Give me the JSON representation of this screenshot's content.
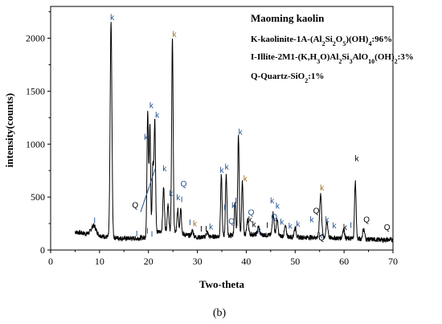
{
  "figure": {
    "panel_label": "(b)"
  },
  "legend": {
    "title": "Maoming kaolin",
    "lines": [
      [
        "K-kaolinite-1A-(Al",
        {
          "sub": "2"
        },
        "Si",
        {
          "sub": "2"
        },
        "O",
        {
          "sub": "5"
        },
        ")(OH)",
        {
          "sub": "4"
        },
        ":96%"
      ],
      [
        "I-Illite-2M1-(K,H",
        {
          "sub": "3"
        },
        "O)Al",
        {
          "sub": "2"
        },
        "Si",
        {
          "sub": "3"
        },
        "AlO",
        {
          "sub": "10"
        },
        "(OH)",
        {
          "sub": "2"
        },
        ":3%"
      ],
      [
        "Q-Quartz-SiO",
        {
          "sub": "2"
        },
        ":1%"
      ]
    ]
  },
  "chart_data": {
    "type": "line",
    "title": "",
    "xlabel": "Two-theta",
    "ylabel": "intensity(counts)",
    "xlim": [
      0,
      70
    ],
    "ylim": [
      0,
      2300
    ],
    "xticks": [
      0,
      10,
      20,
      30,
      40,
      50,
      60,
      70
    ],
    "yticks": [
      0,
      500,
      1000,
      1500,
      2000
    ],
    "series": [
      {
        "color": "#000000",
        "baseline": [
          [
            5,
            170
          ],
          [
            8,
            150
          ],
          [
            10,
            135
          ],
          [
            12,
            120
          ],
          [
            15,
            110
          ],
          [
            18,
            110
          ],
          [
            20,
            125
          ],
          [
            22,
            170
          ],
          [
            24,
            190
          ],
          [
            27,
            150
          ],
          [
            30,
            120
          ],
          [
            35,
            130
          ],
          [
            40,
            150
          ],
          [
            45,
            140
          ],
          [
            50,
            120
          ],
          [
            55,
            120
          ],
          [
            60,
            110
          ],
          [
            65,
            100
          ],
          [
            70,
            95
          ]
        ],
        "peaks": [
          {
            "x": 8.8,
            "y": 230,
            "w": 0.5
          },
          {
            "x": 12.35,
            "y": 2150,
            "w": 0.18
          },
          {
            "x": 19.85,
            "y": 1320,
            "w": 0.15
          },
          {
            "x": 20.3,
            "y": 1180,
            "w": 0.14
          },
          {
            "x": 20.9,
            "y": 800,
            "w": 0.15
          },
          {
            "x": 21.3,
            "y": 1220,
            "w": 0.15
          },
          {
            "x": 23.1,
            "y": 590,
            "w": 0.16
          },
          {
            "x": 24.0,
            "y": 440,
            "w": 0.15
          },
          {
            "x": 24.9,
            "y": 2000,
            "w": 0.15
          },
          {
            "x": 26.0,
            "y": 380,
            "w": 0.15
          },
          {
            "x": 26.6,
            "y": 400,
            "w": 0.15
          },
          {
            "x": 29.0,
            "y": 180,
            "w": 0.2
          },
          {
            "x": 32.0,
            "y": 170,
            "w": 0.2
          },
          {
            "x": 34.9,
            "y": 700,
            "w": 0.15
          },
          {
            "x": 35.9,
            "y": 720,
            "w": 0.15
          },
          {
            "x": 37.7,
            "y": 440,
            "w": 0.15
          },
          {
            "x": 38.4,
            "y": 1080,
            "w": 0.15
          },
          {
            "x": 39.2,
            "y": 640,
            "w": 0.15
          },
          {
            "x": 40.3,
            "y": 280,
            "w": 0.18
          },
          {
            "x": 42.5,
            "y": 220,
            "w": 0.2
          },
          {
            "x": 45.5,
            "y": 350,
            "w": 0.18
          },
          {
            "x": 46.3,
            "y": 290,
            "w": 0.18
          },
          {
            "x": 48.0,
            "y": 220,
            "w": 0.2
          },
          {
            "x": 50.0,
            "y": 210,
            "w": 0.2
          },
          {
            "x": 55.2,
            "y": 530,
            "w": 0.2
          },
          {
            "x": 56.5,
            "y": 260,
            "w": 0.2
          },
          {
            "x": 59.9,
            "y": 200,
            "w": 0.2
          },
          {
            "x": 62.3,
            "y": 650,
            "w": 0.16
          },
          {
            "x": 64.0,
            "y": 200,
            "w": 0.2
          }
        ]
      }
    ],
    "peak_labels": [
      {
        "text": "I",
        "x": 9.0,
        "y": 255,
        "color": "#1f4e8c"
      },
      {
        "text": "k",
        "x": 12.6,
        "y": 2170,
        "color": "#1f4e8c"
      },
      {
        "text": "I",
        "x": 17.6,
        "y": 130,
        "color": "#1f4e8c"
      },
      {
        "text": "I",
        "x": 19.8,
        "y": 155,
        "color": "#1f4e8c"
      },
      {
        "text": "I",
        "x": 20.7,
        "y": 125,
        "color": "#1f4e8c"
      },
      {
        "text": "k",
        "x": 19.5,
        "y": 1040,
        "color": "#1f4e8c"
      },
      {
        "text": "k",
        "x": 20.6,
        "y": 1340,
        "color": "#1f4e8c"
      },
      {
        "text": "k",
        "x": 21.8,
        "y": 1250,
        "color": "#1f4e8c"
      },
      {
        "text": "Q",
        "x": 17.3,
        "y": 400,
        "color": "#000000"
      },
      {
        "text": "k",
        "x": 23.3,
        "y": 745,
        "color": "#1f4e8c"
      },
      {
        "text": "k",
        "x": 24.6,
        "y": 510,
        "color": "#1f4e8c"
      },
      {
        "text": "k",
        "x": 25.3,
        "y": 2010,
        "color": "#a07020"
      },
      {
        "text": "k",
        "x": 26.1,
        "y": 470,
        "color": "#1f4e8c"
      },
      {
        "text": "I",
        "x": 26.8,
        "y": 450,
        "color": "#1f4e8c"
      },
      {
        "text": "Q",
        "x": 27.2,
        "y": 600,
        "color": "#1f4e8c"
      },
      {
        "text": "I",
        "x": 28.5,
        "y": 235,
        "color": "#1f4e8c"
      },
      {
        "text": "k",
        "x": 29.5,
        "y": 225,
        "color": "#a07020"
      },
      {
        "text": "I",
        "x": 30.8,
        "y": 175,
        "color": "#000000"
      },
      {
        "text": "I",
        "x": 31.8,
        "y": 175,
        "color": "#000000"
      },
      {
        "text": "k",
        "x": 32.8,
        "y": 195,
        "color": "#1f4e8c"
      },
      {
        "text": "k",
        "x": 35.0,
        "y": 730,
        "color": "#1f4e8c"
      },
      {
        "text": "k",
        "x": 36.0,
        "y": 760,
        "color": "#1f4e8c"
      },
      {
        "text": "I",
        "x": 35.6,
        "y": 375,
        "color": "#1f4e8c"
      },
      {
        "text": "Q",
        "x": 37.0,
        "y": 245,
        "color": "#1f4e8c"
      },
      {
        "text": "k",
        "x": 37.4,
        "y": 395,
        "color": "#1f4e8c"
      },
      {
        "text": "I",
        "x": 37.9,
        "y": 440,
        "color": "#1f4e8c"
      },
      {
        "text": "k",
        "x": 38.8,
        "y": 1090,
        "color": "#1f4e8c"
      },
      {
        "text": "k",
        "x": 39.8,
        "y": 650,
        "color": "#a07020"
      },
      {
        "text": "Q",
        "x": 41.0,
        "y": 330,
        "color": "#1f4e8c"
      },
      {
        "text": "k",
        "x": 40.8,
        "y": 260,
        "color": "#000000"
      },
      {
        "text": "k",
        "x": 41.6,
        "y": 215,
        "color": "#000000"
      },
      {
        "text": "k",
        "x": 42.6,
        "y": 155,
        "color": "#1f4e8c"
      },
      {
        "text": "I",
        "x": 44.3,
        "y": 210,
        "color": "#000000"
      },
      {
        "text": "k",
        "x": 45.3,
        "y": 440,
        "color": "#1f4e8c"
      },
      {
        "text": "k",
        "x": 46.4,
        "y": 390,
        "color": "#1f4e8c"
      },
      {
        "text": "Q",
        "x": 45.7,
        "y": 290,
        "color": "#1f4e8c"
      },
      {
        "text": "k",
        "x": 47.3,
        "y": 240,
        "color": "#1f4e8c"
      },
      {
        "text": "k",
        "x": 49.0,
        "y": 200,
        "color": "#1f4e8c"
      },
      {
        "text": "k",
        "x": 50.6,
        "y": 220,
        "color": "#1f4e8c"
      },
      {
        "text": "k",
        "x": 53.4,
        "y": 260,
        "color": "#1f4e8c"
      },
      {
        "text": "Q",
        "x": 54.3,
        "y": 345,
        "color": "#000000"
      },
      {
        "text": "k",
        "x": 55.5,
        "y": 560,
        "color": "#a07020"
      },
      {
        "text": "k",
        "x": 55.2,
        "y": 110,
        "color": "#1f4e8c"
      },
      {
        "text": "Q",
        "x": 55.4,
        "y": 90,
        "color": "#000000"
      },
      {
        "text": "k",
        "x": 56.5,
        "y": 260,
        "color": "#1f4e8c"
      },
      {
        "text": "k",
        "x": 58.0,
        "y": 205,
        "color": "#1f4e8c"
      },
      {
        "text": "k",
        "x": 60.2,
        "y": 190,
        "color": "#000000"
      },
      {
        "text": "I",
        "x": 61.4,
        "y": 210,
        "color": "#1f4e8c"
      },
      {
        "text": "k",
        "x": 62.6,
        "y": 840,
        "color": "#000000"
      },
      {
        "text": "Q",
        "x": 64.6,
        "y": 260,
        "color": "#000000"
      },
      {
        "text": "Q",
        "x": 68.8,
        "y": 190,
        "color": "#000000"
      }
    ],
    "annotation_lines": [
      {
        "from": [
          18.4,
          360
        ],
        "to": [
          20.2,
          600
        ]
      },
      {
        "from": [
          18.4,
          360
        ],
        "to": [
          21.4,
          770
        ]
      }
    ]
  }
}
